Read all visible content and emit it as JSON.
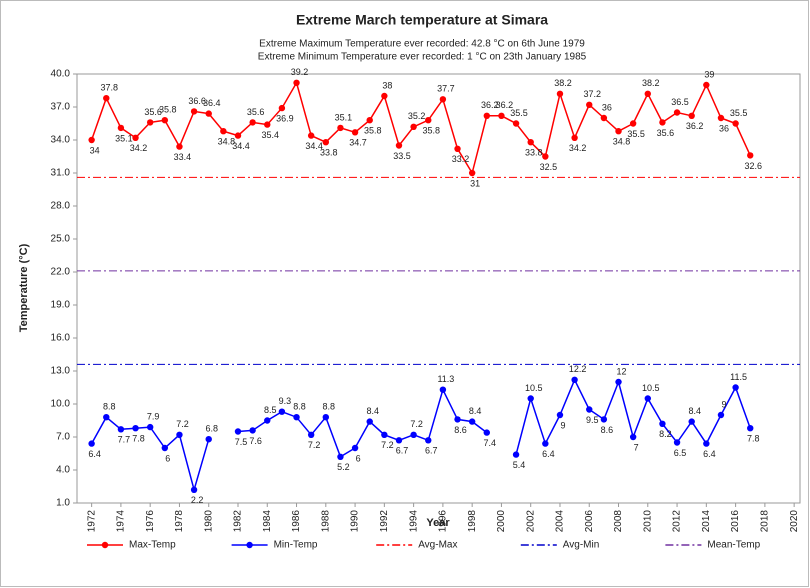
{
  "chart_data": {
    "type": "line",
    "title": "Extreme March temperature at Simara",
    "subtitle": [
      "Extreme Maximum Temperature ever recorded: 42.8 °C on 6th June 1979",
      "Extreme Minimum Temperature ever recorded: 1 °C on 23th January 1985"
    ],
    "xlabel": "Year",
    "ylabel": "Temperature (°C)",
    "x": [
      1972,
      1973,
      1974,
      1975,
      1976,
      1977,
      1978,
      1979,
      1980,
      1981,
      1982,
      1983,
      1984,
      1985,
      1986,
      1987,
      1988,
      1989,
      1990,
      1991,
      1992,
      1993,
      1994,
      1995,
      1996,
      1997,
      1998,
      1999,
      2000,
      2001,
      2002,
      2003,
      2004,
      2005,
      2006,
      2007,
      2008,
      2009,
      2010,
      2011,
      2012,
      2013,
      2014,
      2015,
      2016,
      2017
    ],
    "series": [
      {
        "name": "Max-Temp",
        "color": "#ff0000",
        "marker": true,
        "values": [
          34.0,
          37.8,
          35.1,
          34.2,
          35.6,
          35.8,
          33.4,
          36.6,
          36.4,
          34.8,
          34.4,
          35.6,
          35.4,
          36.9,
          39.2,
          34.4,
          33.8,
          35.1,
          34.7,
          35.8,
          38.0,
          33.5,
          35.2,
          35.8,
          37.7,
          33.2,
          31.0,
          36.2,
          36.2,
          35.5,
          33.8,
          32.5,
          38.2,
          34.2,
          37.2,
          36.0,
          34.8,
          35.5,
          38.2,
          35.6,
          36.5,
          36.2,
          39.0,
          36.0,
          35.5,
          32.6
        ]
      },
      {
        "name": "Min-Temp",
        "color": "#0000ff",
        "marker": true,
        "values": [
          6.4,
          8.8,
          7.7,
          7.8,
          7.9,
          6.0,
          7.2,
          2.2,
          6.8,
          null,
          7.5,
          7.6,
          8.5,
          9.3,
          8.8,
          7.2,
          8.8,
          5.2,
          6.0,
          8.4,
          7.2,
          6.7,
          7.2,
          6.7,
          11.3,
          8.6,
          8.4,
          7.4,
          null,
          5.4,
          10.5,
          6.4,
          9.0,
          12.2,
          9.5,
          8.6,
          12.0,
          7.0,
          10.5,
          8.2,
          6.5,
          8.4,
          6.4,
          9.0,
          11.5,
          7.8
        ]
      },
      {
        "name": "Avg-Max",
        "color": "#ff0000",
        "dash": true,
        "value": 30.6
      },
      {
        "name": "Avg-Min",
        "color": "#0000cc",
        "dash": true,
        "value": 13.6
      },
      {
        "name": "Mean-Temp",
        "color": "#7030a0",
        "dash": true,
        "value": 22.1
      }
    ],
    "xlim": [
      1971,
      2020.4
    ],
    "xticks": [
      1972,
      1974,
      1976,
      1978,
      1980,
      1982,
      1984,
      1986,
      1988,
      1990,
      1992,
      1994,
      1996,
      1998,
      2000,
      2002,
      2004,
      2006,
      2008,
      2010,
      2012,
      2014,
      2016,
      2018,
      2020
    ],
    "ylim": [
      1.0,
      40.0
    ],
    "yticks": [
      {
        "value": 1,
        "label": "1.0"
      },
      {
        "value": 4,
        "label": "4.0"
      },
      {
        "value": 7,
        "label": "7.0"
      },
      {
        "value": 10,
        "label": "10.0"
      },
      {
        "value": 13,
        "label": "13.0"
      },
      {
        "value": 16,
        "label": "16.0"
      },
      {
        "value": 19,
        "label": "19.0"
      },
      {
        "value": 22,
        "label": "22.0"
      },
      {
        "value": 25,
        "label": "25.0"
      },
      {
        "value": 28,
        "label": "28.0"
      },
      {
        "value": 31,
        "label": "31.0"
      },
      {
        "value": 34,
        "label": "34.0"
      },
      {
        "value": 37,
        "label": "37.0"
      },
      {
        "value": 40,
        "label": "40.0"
      }
    ],
    "legend": "bottom"
  }
}
